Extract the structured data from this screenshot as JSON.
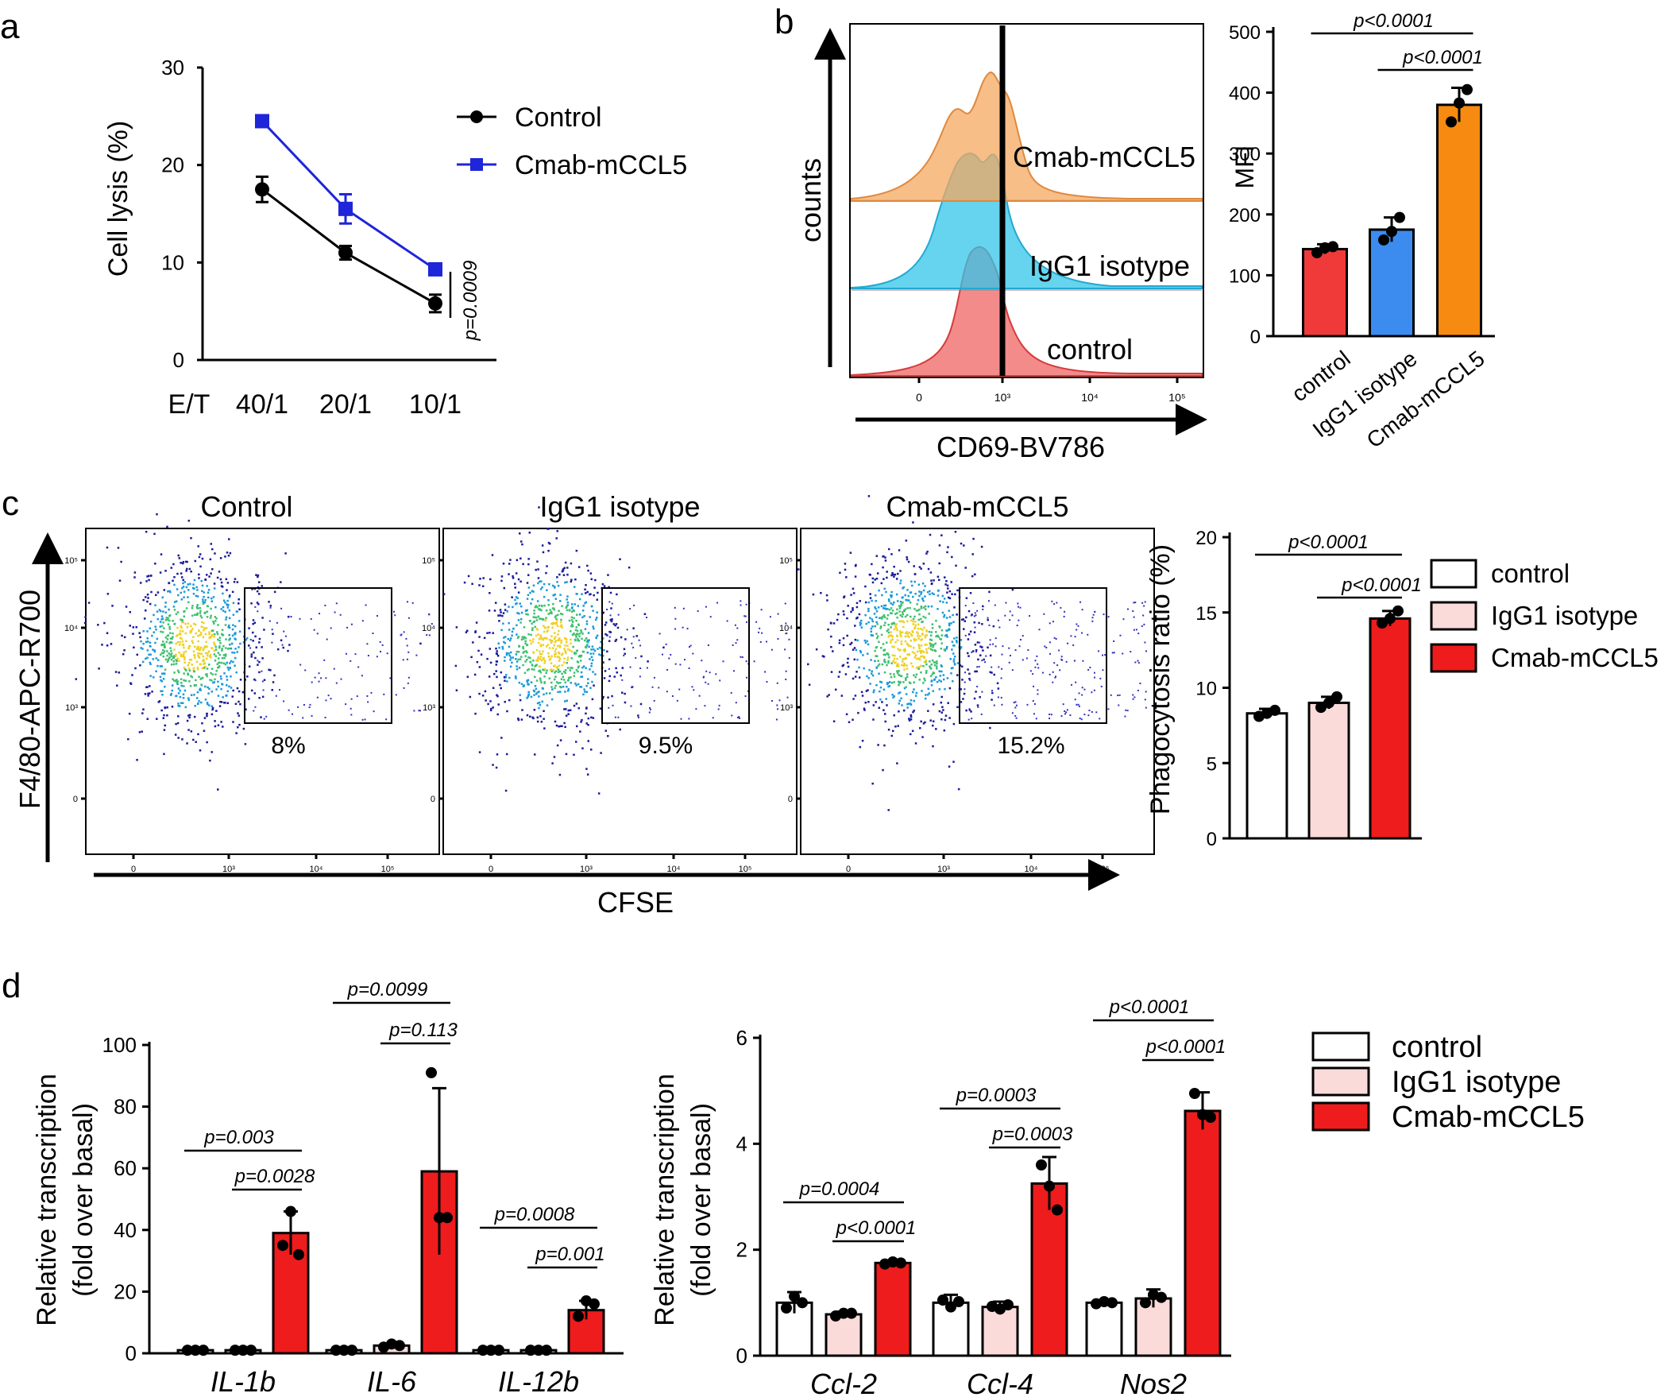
{
  "panel_labels": {
    "a": "a",
    "b": "b",
    "c": "c",
    "d": "d"
  },
  "chart_data": [
    {
      "id": "a",
      "type": "line",
      "ylabel": "Cell lysis (%)",
      "xprefix": "E/T",
      "categories": [
        "40/1",
        "20/1",
        "10/1"
      ],
      "ylim": [
        0,
        30
      ],
      "yticks": [
        0,
        10,
        20,
        30
      ],
      "series": [
        {
          "name": "Control",
          "values": [
            17.5,
            11,
            5.8
          ],
          "errors": [
            1.3,
            0.7,
            0.9
          ],
          "color": "#000000",
          "marker": "circle"
        },
        {
          "name": "Cmab-mCCL5",
          "values": [
            24.5,
            15.5,
            9.3
          ],
          "errors": [
            0.5,
            1.5,
            0.5
          ],
          "color": "#1f25d8",
          "marker": "square"
        }
      ],
      "annotation": "p=0.0009"
    },
    {
      "id": "b-hist",
      "type": "histogram",
      "ylabel": "counts",
      "xlabel": "CD69-BV786",
      "xticks": [
        "0",
        "10³",
        "10⁴",
        "10⁵"
      ],
      "series": [
        {
          "name": "Cmab-mCCL5",
          "color": "#f4a860"
        },
        {
          "name": "IgG1 isotype",
          "color": "#33c6ea"
        },
        {
          "name": "control",
          "color": "#ef5a5a"
        }
      ]
    },
    {
      "id": "b-bar",
      "type": "bar",
      "ylabel": "MFI",
      "categories": [
        "control",
        "IgG1 isotype",
        "Cmab-mCCL5"
      ],
      "values": [
        143,
        175,
        380
      ],
      "errors": [
        8,
        20,
        28
      ],
      "points": [
        [
          137,
          145,
          147
        ],
        [
          158,
          172,
          195
        ],
        [
          352,
          383,
          405
        ]
      ],
      "colors": [
        "#f03a3a",
        "#3c8cf0",
        "#f78a10"
      ],
      "ylim": [
        0,
        500
      ],
      "yticks": [
        0,
        100,
        200,
        300,
        400,
        500
      ],
      "significance": [
        {
          "from": 0,
          "to": 2,
          "label": "p<0.0001"
        },
        {
          "from": 1,
          "to": 2,
          "label": "p<0.0001"
        }
      ]
    },
    {
      "id": "c-flow",
      "type": "scatter",
      "ylabel": "F4/80-APC-R700",
      "xlabel": "CFSE",
      "panels": [
        {
          "title": "Control",
          "gate_pct": "8%"
        },
        {
          "title": "IgG1 isotype",
          "gate_pct": "9.5%"
        },
        {
          "title": "Cmab-mCCL5",
          "gate_pct": "15.2%"
        }
      ],
      "ticks": [
        "0",
        "10³",
        "10⁴",
        "10⁵"
      ]
    },
    {
      "id": "c-bar",
      "type": "bar",
      "ylabel": "Phagocytosis ratio  (%)",
      "categories": [
        "control",
        "IgG1 isotype",
        "Cmab-mCCL5"
      ],
      "values": [
        8.3,
        9.0,
        14.6
      ],
      "errors": [
        0.3,
        0.4,
        0.5
      ],
      "points": [
        [
          8.1,
          8.3,
          8.5
        ],
        [
          8.7,
          9.0,
          9.4
        ],
        [
          14.3,
          14.6,
          15.1
        ]
      ],
      "colors": [
        "#ffffff",
        "#fbdada",
        "#ee1c1c"
      ],
      "ylim": [
        0,
        20
      ],
      "yticks": [
        0,
        5,
        10,
        15,
        20
      ],
      "significance": [
        {
          "from": 0,
          "to": 2,
          "label": "p<0.0001"
        },
        {
          "from": 1,
          "to": 2,
          "label": "p<0.0001"
        }
      ],
      "legend": [
        "control",
        "IgG1 isotype",
        "Cmab-mCCL5"
      ]
    },
    {
      "id": "d-left",
      "type": "bar",
      "ylabel_lines": [
        "Relative transcription",
        "(fold over basal)"
      ],
      "groups": [
        "IL-1b",
        "IL-6",
        "IL-12b"
      ],
      "series_names": [
        "control",
        "IgG1 isotype",
        "Cmab-mCCL5"
      ],
      "values": [
        [
          1,
          1,
          39
        ],
        [
          1,
          2.5,
          59
        ],
        [
          1,
          1,
          14
        ]
      ],
      "errors": [
        [
          0,
          0,
          7
        ],
        [
          0,
          0,
          27
        ],
        [
          0,
          0,
          3
        ]
      ],
      "points": [
        [
          [
            1,
            1,
            1
          ],
          [
            1,
            1,
            1
          ],
          [
            35,
            46,
            32
          ]
        ],
        [
          [
            1,
            1,
            1
          ],
          [
            2,
            3,
            2.5
          ],
          [
            91,
            44,
            44
          ]
        ],
        [
          [
            1,
            1,
            1
          ],
          [
            1,
            1,
            1
          ],
          [
            12,
            17,
            16
          ]
        ]
      ],
      "ylim": [
        0,
        100
      ],
      "yticks": [
        0,
        20,
        40,
        60,
        80,
        100
      ],
      "significance": [
        {
          "group": 0,
          "from": 0,
          "to": 2,
          "label": "p=0.003"
        },
        {
          "group": 0,
          "from": 1,
          "to": 2,
          "label": "p=0.0028"
        },
        {
          "group": 1,
          "from": 0,
          "to": 2,
          "label": "p=0.0099"
        },
        {
          "group": 1,
          "from": 1,
          "to": 2,
          "label": "p=0.113"
        },
        {
          "group": 2,
          "from": 0,
          "to": 2,
          "label": "p=0.0008"
        },
        {
          "group": 2,
          "from": 1,
          "to": 2,
          "label": "p=0.001"
        }
      ]
    },
    {
      "id": "d-right",
      "type": "bar",
      "ylabel_lines": [
        "Relative transcription",
        "(fold over basal)"
      ],
      "groups": [
        "Ccl-2",
        "Ccl-4",
        "Nos2"
      ],
      "series_names": [
        "control",
        "IgG1 isotype",
        "Cmab-mCCL5"
      ],
      "values": [
        [
          1.0,
          0.78,
          1.75
        ],
        [
          1.0,
          0.92,
          3.25
        ],
        [
          1.0,
          1.08,
          4.62
        ]
      ],
      "errors": [
        [
          0.2,
          0.05,
          0.05
        ],
        [
          0.15,
          0.1,
          0.5
        ],
        [
          0.05,
          0.17,
          0.35
        ]
      ],
      "points": [
        [
          [
            0.9,
            1.12,
            1.0
          ],
          [
            0.75,
            0.8,
            0.8
          ],
          [
            1.73,
            1.77,
            1.75
          ]
        ],
        [
          [
            1.05,
            0.92,
            1.02
          ],
          [
            0.93,
            0.88,
            0.96
          ],
          [
            3.6,
            3.2,
            2.75
          ]
        ],
        [
          [
            0.98,
            1.02,
            1.0
          ],
          [
            1.0,
            1.15,
            1.1
          ],
          [
            4.95,
            4.55,
            4.5
          ]
        ]
      ],
      "ylim": [
        0,
        6
      ],
      "yticks": [
        0,
        2,
        4,
        6
      ],
      "significance": [
        {
          "group": 0,
          "from": 0,
          "to": 2,
          "label": "p=0.0004"
        },
        {
          "group": 0,
          "from": 1,
          "to": 2,
          "label": "p<0.0001"
        },
        {
          "group": 1,
          "from": 0,
          "to": 2,
          "label": "p=0.0003"
        },
        {
          "group": 1,
          "from": 1,
          "to": 2,
          "label": "p=0.0003"
        },
        {
          "group": 2,
          "from": 0,
          "to": 2,
          "label": "p<0.0001"
        },
        {
          "group": 2,
          "from": 1,
          "to": 2,
          "label": "p<0.0001"
        }
      ],
      "legend": [
        "control",
        "IgG1 isotype",
        "Cmab-mCCL5"
      ]
    }
  ],
  "d_colors": [
    "#ffffff",
    "#fbdada",
    "#ee1c1c"
  ]
}
